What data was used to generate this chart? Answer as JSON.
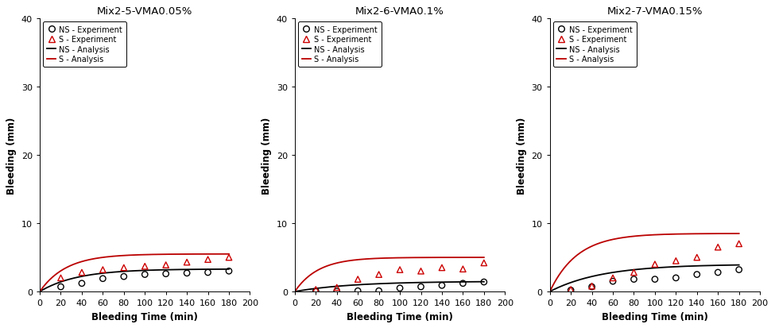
{
  "panels": [
    {
      "title": "Mix2-5-VMA0.05%",
      "NS_exp_x": [
        20,
        40,
        60,
        80,
        100,
        120,
        140,
        160,
        180
      ],
      "NS_exp_y": [
        0.7,
        1.2,
        1.9,
        2.2,
        2.5,
        2.6,
        2.7,
        2.8,
        3.0
      ],
      "S_exp_x": [
        20,
        40,
        60,
        80,
        100,
        120,
        140,
        160,
        180
      ],
      "S_exp_y": [
        2.0,
        2.8,
        3.2,
        3.5,
        3.7,
        3.9,
        4.3,
        4.7,
        5.0
      ],
      "NS_curve_params": {
        "a": 3.3,
        "b": 0.028
      },
      "S_curve_params": {
        "a": 5.5,
        "b": 0.04
      }
    },
    {
      "title": "Mix2-6-VMA0.1%",
      "NS_exp_x": [
        20,
        40,
        60,
        80,
        100,
        120,
        140,
        160,
        180
      ],
      "NS_exp_y": [
        0.05,
        0.05,
        0.1,
        0.1,
        0.5,
        0.7,
        0.9,
        1.2,
        1.4
      ],
      "S_exp_x": [
        20,
        40,
        60,
        80,
        100,
        120,
        140,
        160,
        180
      ],
      "S_exp_y": [
        0.3,
        0.6,
        1.8,
        2.5,
        3.2,
        3.0,
        3.5,
        3.3,
        4.2
      ],
      "NS_curve_params": {
        "a": 1.5,
        "b": 0.018
      },
      "S_curve_params": {
        "a": 5.0,
        "b": 0.045
      }
    },
    {
      "title": "Mix2-7-VMA0.15%",
      "NS_exp_x": [
        20,
        40,
        60,
        80,
        100,
        120,
        140,
        160,
        180
      ],
      "NS_exp_y": [
        0.2,
        0.7,
        1.5,
        1.8,
        1.8,
        2.0,
        2.5,
        2.8,
        3.2
      ],
      "S_exp_x": [
        20,
        40,
        60,
        80,
        100,
        120,
        140,
        160,
        180
      ],
      "S_exp_y": [
        0.3,
        0.8,
        2.0,
        2.8,
        4.0,
        4.5,
        5.0,
        6.5,
        7.0
      ],
      "NS_curve_params": {
        "a": 4.0,
        "b": 0.02
      },
      "S_curve_params": {
        "a": 8.5,
        "b": 0.038
      }
    }
  ],
  "ylim": [
    0,
    40
  ],
  "xlim": [
    0,
    200
  ],
  "xticks": [
    0,
    20,
    40,
    60,
    80,
    100,
    120,
    140,
    160,
    180,
    200
  ],
  "yticks": [
    0,
    10,
    20,
    30,
    40
  ],
  "xlabel": "Bleeding Time (min)",
  "ylabel": "Bleeding (mm)",
  "legend_labels": [
    "NS - Experiment",
    "S - Experiment",
    "NS - Analysis",
    "S - Analysis"
  ],
  "ns_exp_color": "#000000",
  "s_exp_color": "#cc0000",
  "ns_line_color": "#000000",
  "s_line_color": "#bb0000",
  "bg_color": "#ffffff",
  "fontsize_title": 9.5,
  "fontsize_label": 8.5,
  "fontsize_tick": 8,
  "fontsize_legend": 7.0
}
